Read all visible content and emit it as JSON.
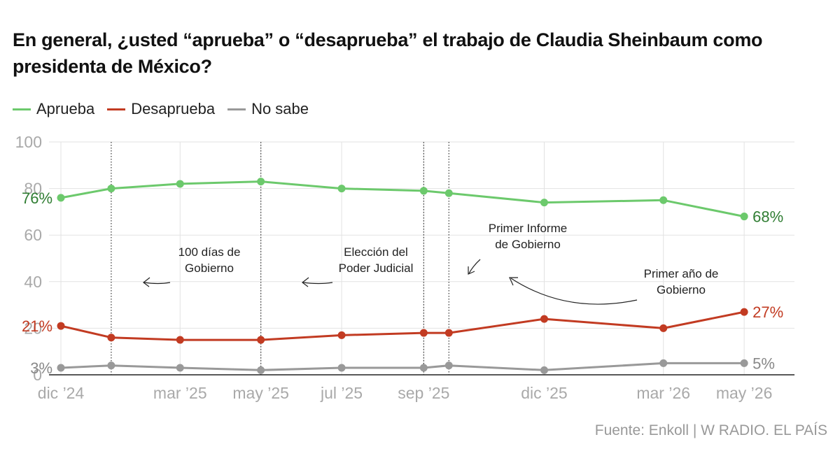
{
  "title": "En general, ¿usted “aprueba” o “desaprueba” el trabajo de Claudia Sheinbaum como presidenta de México?",
  "source": "Fuente: Enkoll | W RADIO. EL PAÍS",
  "colors": {
    "aprueba": "#6cc96c",
    "desaprueba": "#c23b22",
    "nosabe": "#999999",
    "grid": "#e2e2e2",
    "axis": "#222222",
    "tick": "#a9a9a9"
  },
  "legend": [
    {
      "label": "Aprueba",
      "color": "#6cc96c"
    },
    {
      "label": "Desaprueba",
      "color": "#c23b22"
    },
    {
      "label": "No sabe",
      "color": "#999999"
    }
  ],
  "chart_data": {
    "type": "line",
    "title": "En general, ¿usted “aprueba” o “desaprueba” el trabajo de Claudia Sheinbaum como presidenta de México?",
    "xlabel": "",
    "ylabel": "",
    "ylim": [
      0,
      100
    ],
    "yticks": [
      0,
      20,
      40,
      60,
      80,
      100
    ],
    "xlim": [
      "2024-11-22",
      "2026-06-08"
    ],
    "xticks": [
      {
        "date": "2024-12-01",
        "label": "dic ’24"
      },
      {
        "date": "2025-03-01",
        "label": "mar ’25"
      },
      {
        "date": "2025-05-01",
        "label": "may ’25"
      },
      {
        "date": "2025-07-01",
        "label": "jul ’25"
      },
      {
        "date": "2025-09-01",
        "label": "sep ’25"
      },
      {
        "date": "2025-12-01",
        "label": "dic ’25"
      },
      {
        "date": "2026-03-01",
        "label": "mar ’26"
      },
      {
        "date": "2026-05-01",
        "label": "may ’26"
      }
    ],
    "grid": "vertical and horizontal",
    "legend_position": "top-left",
    "x": [
      "2024-12-01",
      "2025-01-08",
      "2025-03-01",
      "2025-05-01",
      "2025-07-01",
      "2025-09-01",
      "2025-09-20",
      "2025-12-01",
      "2026-03-01",
      "2026-05-01"
    ],
    "series": [
      {
        "name": "Aprueba",
        "color": "#6cc96c",
        "values": [
          76,
          80,
          82,
          83,
          80,
          79,
          78,
          74,
          75,
          68
        ],
        "start_label": "76%",
        "end_label": "68%"
      },
      {
        "name": "Desaprueba",
        "color": "#c23b22",
        "values": [
          21,
          16,
          15,
          15,
          17,
          18,
          18,
          24,
          20,
          27
        ],
        "start_label": "21%",
        "end_label": "27%"
      },
      {
        "name": "No sabe",
        "color": "#999999",
        "values": [
          3,
          4,
          3,
          2,
          3,
          3,
          4,
          2,
          5,
          5
        ],
        "start_label": "3%",
        "end_label": "5%"
      }
    ],
    "events": [
      {
        "date": "2025-01-08",
        "text": [
          "100 días de",
          "Gobierno"
        ]
      },
      {
        "date": "2025-06-01",
        "text": [
          "Elección del",
          "Poder Judicial"
        ]
      },
      {
        "date": "2025-09-01",
        "text": [
          "Primer Informe",
          "de Gobierno"
        ]
      },
      {
        "date": "2025-10-01",
        "text": [
          "Primer año de",
          "Gobierno"
        ]
      }
    ]
  }
}
